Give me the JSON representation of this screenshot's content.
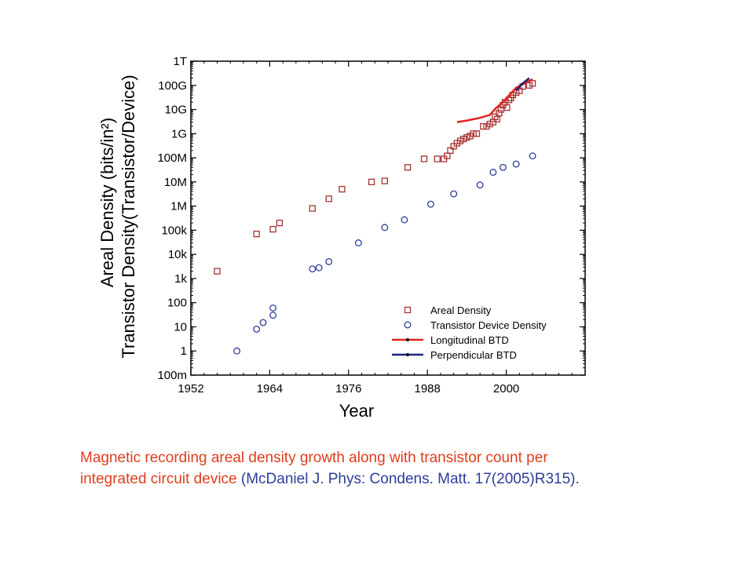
{
  "caption": {
    "line1": "Magnetic recording areal density growth along with transistor count per",
    "line2_main": "integrated circuit device ",
    "line2_citation": "(McDaniel J. Phys: Condens. Matt. 17(2005)R315).",
    "color_main": "#e03c1e",
    "color_citation": "#2e3d99"
  },
  "chart_data": {
    "type": "scatter",
    "xlabel": "Year",
    "ylabel": "Areal Density (bits/in²)",
    "ylabel2": "Transistor Density(Transistor/Device)",
    "xlim": [
      1952,
      2012
    ],
    "xticks": [
      1952,
      1964,
      1976,
      1988,
      2000
    ],
    "yscale": "log",
    "ylim": [
      0.1,
      1000000000000.0
    ],
    "yticks": [
      {
        "value": 1000000000000.0,
        "label": "1T"
      },
      {
        "value": 100000000000.0,
        "label": "100G"
      },
      {
        "value": 10000000000.0,
        "label": "10G"
      },
      {
        "value": 1000000000.0,
        "label": "1G"
      },
      {
        "value": 100000000.0,
        "label": "100M"
      },
      {
        "value": 10000000.0,
        "label": "10M"
      },
      {
        "value": 1000000.0,
        "label": "1M"
      },
      {
        "value": 100000.0,
        "label": "100k"
      },
      {
        "value": 10000.0,
        "label": "10k"
      },
      {
        "value": 1000.0,
        "label": "1k"
      },
      {
        "value": 100,
        "label": "100"
      },
      {
        "value": 10,
        "label": "10"
      },
      {
        "value": 1,
        "label": "1"
      },
      {
        "value": 0.1,
        "label": "100m"
      }
    ],
    "grid": false,
    "legend_position": "bottom-right",
    "series": [
      {
        "name": "Areal Density",
        "marker": "square",
        "color": "#a83232",
        "points": [
          [
            1956,
            2000
          ],
          [
            1962,
            70000
          ],
          [
            1964.5,
            110000
          ],
          [
            1965.5,
            200000
          ],
          [
            1970.5,
            800000
          ],
          [
            1973,
            2000000
          ],
          [
            1975,
            5000000
          ],
          [
            1979.5,
            10000000
          ],
          [
            1981.5,
            11000000
          ],
          [
            1985,
            40000000
          ],
          [
            1987.5,
            90000000
          ],
          [
            1989.5,
            90000000
          ],
          [
            1990.5,
            90000000
          ],
          [
            1991,
            120000000
          ],
          [
            1991.5,
            200000000
          ],
          [
            1992,
            300000000
          ],
          [
            1992.5,
            400000000
          ],
          [
            1993,
            500000000
          ],
          [
            1993.5,
            600000000
          ],
          [
            1994,
            700000000
          ],
          [
            1994.5,
            800000000
          ],
          [
            1995,
            1000000000
          ],
          [
            1995.5,
            1000000000
          ],
          [
            1996.5,
            2000000000
          ],
          [
            1997,
            2000000000
          ],
          [
            1997.5,
            2500000000
          ],
          [
            1998,
            3000000000
          ],
          [
            1998.3,
            5000000000
          ],
          [
            1998.6,
            4000000000
          ],
          [
            1998.9,
            7000000000
          ],
          [
            1999.2,
            10000000000
          ],
          [
            1999.5,
            15000000000
          ],
          [
            1999.8,
            20000000000
          ],
          [
            2000.1,
            12000000000
          ],
          [
            2000.4,
            25000000000
          ],
          [
            2000.7,
            30000000000
          ],
          [
            2001,
            40000000000
          ],
          [
            2001.5,
            50000000000
          ],
          [
            2002,
            60000000000
          ],
          [
            2002.5,
            90000000000
          ],
          [
            2003.5,
            100000000000
          ],
          [
            2004,
            120000000000
          ]
        ]
      },
      {
        "name": "Transistor Device Density",
        "marker": "circle",
        "color": "#2e3d99",
        "points": [
          [
            1959,
            1
          ],
          [
            1962,
            8
          ],
          [
            1963,
            15
          ],
          [
            1964.5,
            30
          ],
          [
            1964.5,
            60
          ],
          [
            1970.5,
            2500
          ],
          [
            1971.5,
            2800
          ],
          [
            1973,
            5000
          ],
          [
            1977.5,
            30000
          ],
          [
            1981.5,
            130000
          ],
          [
            1984.5,
            270000
          ],
          [
            1988.5,
            1200000
          ],
          [
            1992,
            3200000
          ],
          [
            1996,
            7500000
          ],
          [
            1998,
            25000000
          ],
          [
            1999.5,
            40000000
          ],
          [
            2001.5,
            55000000
          ],
          [
            2004,
            120000000
          ]
        ]
      },
      {
        "name": "Longitudinal BTD",
        "line": true,
        "dash": "solid",
        "color": "#e3231b",
        "points": [
          [
            1992.5,
            3000000000
          ],
          [
            1994,
            3500000000
          ],
          [
            1996,
            4500000000
          ],
          [
            1997.5,
            6000000000
          ],
          [
            1998.5,
            12000000000
          ],
          [
            1999.5,
            20000000000
          ],
          [
            2000.5,
            40000000000
          ],
          [
            2001.5,
            80000000000
          ],
          [
            2003,
            130000000000
          ],
          [
            2004,
            180000000000
          ]
        ]
      },
      {
        "name": "Perpendicular BTD",
        "line": true,
        "dash": "solid",
        "color": "#1a237e",
        "points": [
          [
            2001.5,
            60000000000
          ],
          [
            2002.5,
            120000000000
          ],
          [
            2003.5,
            200000000000
          ]
        ]
      }
    ]
  }
}
